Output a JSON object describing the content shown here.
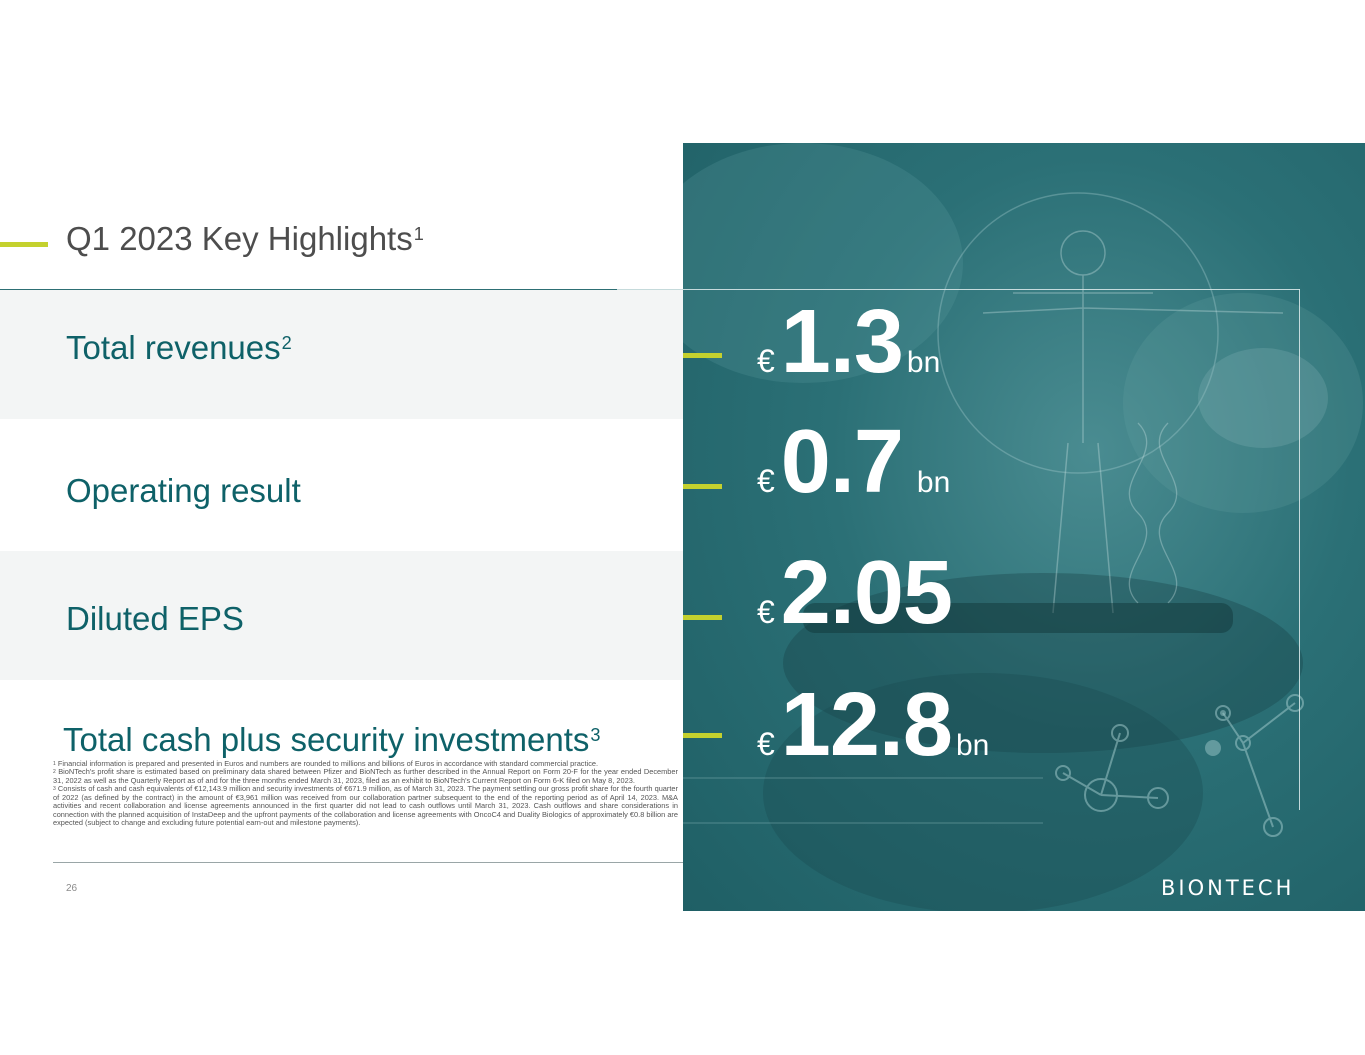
{
  "slide": {
    "title": "Q1 2023 Key Highlights",
    "title_footnote": "1",
    "page_number": "26",
    "logo_text": "BIONTECH"
  },
  "metrics": [
    {
      "label": "Total revenues",
      "footnote": "2",
      "currency": "€",
      "value": "1.3",
      "unit": "bn"
    },
    {
      "label": "Operating result",
      "footnote": "",
      "currency": "€",
      "value": "0.7",
      "unit": "bn"
    },
    {
      "label": "Diluted EPS",
      "footnote": "",
      "currency": "€",
      "value": "2.05",
      "unit": ""
    },
    {
      "label": "Total cash plus security investments",
      "footnote": "3",
      "currency": "€",
      "value": "12.8",
      "unit": "bn"
    }
  ],
  "footnotes": [
    {
      "mark": "1",
      "text": " Financial information is prepared and presented in Euros and numbers are rounded to millions and billions of Euros in accordance with standard commercial practice."
    },
    {
      "mark": "2",
      "text": " BioNTech's profit share is estimated based on preliminary data shared between Pfizer and BioNTech as further described in the Annual Report on Form 20-F for the year ended December 31, 2022 as well as the Quarterly Report as of and for the three months ended March 31, 2023, filed as an exhibit to BioNTech's Current Report on Form 6-K filed on May 8, 2023."
    },
    {
      "mark": "3",
      "text": " Consists of cash and cash equivalents of €12,143.9 million and security investments of €671.9 million, as of March 31, 2023. The payment settling our gross profit share for the fourth quarter of 2022 (as defined by the contract) in the amount of €3,961 million was received from our collaboration partner subsequent to the end of the reporting period as of April 14, 2023. M&A activities and recent collaboration and license agreements announced in the first quarter did not lead to cash outflows until March 31, 2023. Cash outflows and share considerations in connection with the planned acquisition of InstaDeep and the upfront payments of the collaboration and license agreements with OncoC4 and Duality Biologics of approximately €0.8 billion are expected (subject to change and excluding future potential earn-out and milestone payments)."
    }
  ],
  "colors": {
    "accent": "#c4d12e",
    "teal_text": "#0e6168",
    "panel_bg": "#2b7076",
    "band_bg": "#f3f5f5"
  }
}
